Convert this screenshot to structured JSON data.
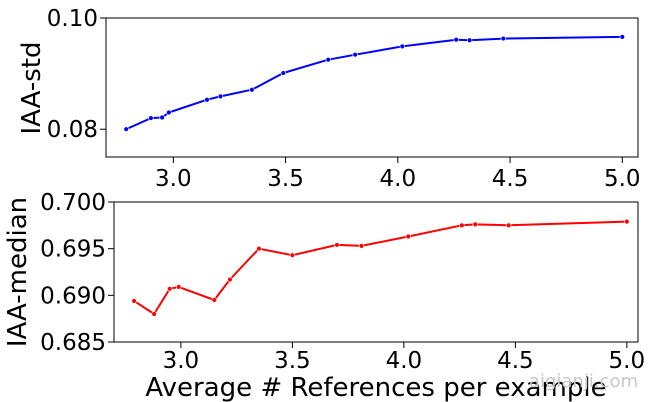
{
  "chart_data": [
    {
      "type": "line",
      "ylabel": "IAA-std",
      "xlabel": "",
      "xlim": [
        2.7,
        5.07
      ],
      "ylim": [
        0.075,
        0.1
      ],
      "xticks": [
        "3.0",
        "3.5",
        "4.0",
        "4.5",
        "5.0"
      ],
      "yticks": [
        "0.08",
        "0.10"
      ],
      "grid": false,
      "series": [
        {
          "color": "#0000ff",
          "x": [
            2.79,
            2.9,
            2.95,
            2.98,
            3.15,
            3.21,
            3.35,
            3.49,
            3.69,
            3.81,
            4.02,
            4.26,
            4.32,
            4.47,
            5.0
          ],
          "y": [
            0.08,
            0.082,
            0.0821,
            0.083,
            0.0853,
            0.0859,
            0.0871,
            0.0901,
            0.0925,
            0.0934,
            0.0949,
            0.0961,
            0.096,
            0.0963,
            0.0966
          ]
        }
      ]
    },
    {
      "type": "line",
      "ylabel": "IAA-median",
      "xlabel": "Average # References per example",
      "xlim": [
        2.7,
        5.05
      ],
      "ylim": [
        0.685,
        0.7
      ],
      "xticks": [
        "3.0",
        "3.5",
        "4.0",
        "4.5",
        "5.0"
      ],
      "yticks": [
        "0.685",
        "0.690",
        "0.695",
        "0.700"
      ],
      "grid": false,
      "series": [
        {
          "color": "#ff0000",
          "x": [
            2.79,
            2.88,
            2.95,
            2.99,
            3.15,
            3.22,
            3.35,
            3.5,
            3.7,
            3.81,
            4.02,
            4.26,
            4.32,
            4.47,
            5.0
          ],
          "y": [
            0.6894,
            0.688,
            0.6907,
            0.6909,
            0.6895,
            0.6917,
            0.695,
            0.6943,
            0.6954,
            0.6953,
            0.6963,
            0.6975,
            0.6976,
            0.6975,
            0.6979
          ]
        }
      ]
    }
  ],
  "watermark": "aigianji.com"
}
